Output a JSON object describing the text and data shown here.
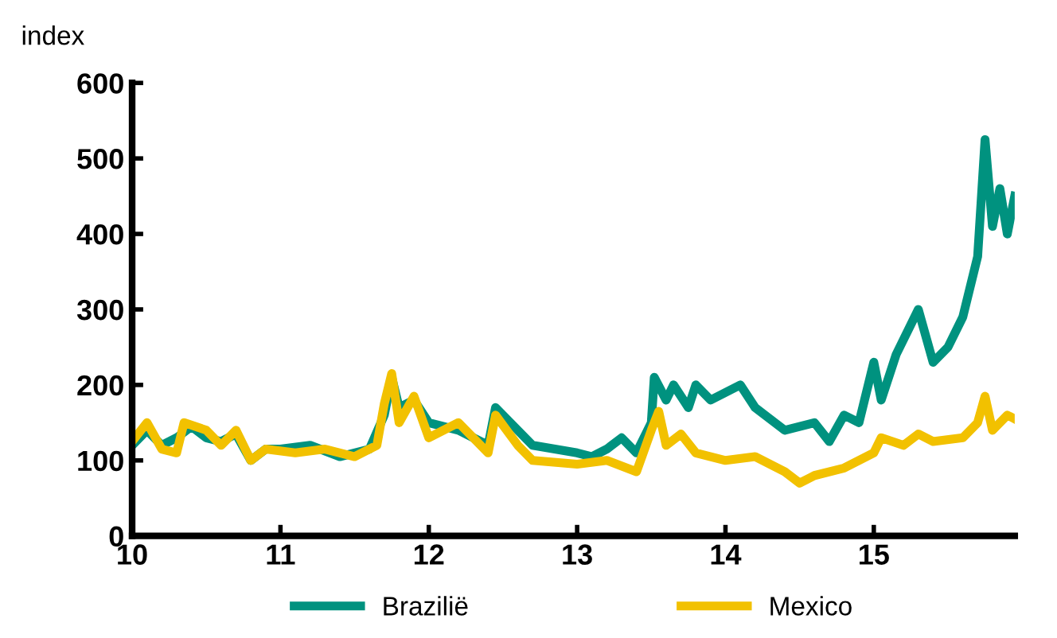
{
  "chart_data": {
    "type": "line",
    "ylabel": "index",
    "xlim": [
      10,
      15.95
    ],
    "xticks": [
      10,
      11,
      12,
      13,
      14,
      15
    ],
    "ylim": [
      0,
      600
    ],
    "yticks": [
      0,
      100,
      200,
      300,
      400,
      500,
      600
    ],
    "grid": false,
    "legend": "bottom",
    "line_style": "solid",
    "marker": "none",
    "series": [
      {
        "name": "Brazilië",
        "color": "#00927f",
        "x": [
          10.0,
          10.1,
          10.2,
          10.3,
          10.4,
          10.5,
          10.6,
          10.7,
          10.8,
          10.9,
          11.0,
          11.2,
          11.4,
          11.6,
          11.7,
          11.75,
          11.8,
          11.9,
          12.0,
          12.2,
          12.4,
          12.45,
          12.55,
          12.7,
          13.0,
          13.1,
          13.2,
          13.3,
          13.4,
          13.5,
          13.52,
          13.6,
          13.65,
          13.75,
          13.8,
          13.9,
          14.0,
          14.1,
          14.2,
          14.3,
          14.4,
          14.5,
          14.6,
          14.7,
          14.8,
          14.9,
          15.0,
          15.05,
          15.15,
          15.3,
          15.4,
          15.5,
          15.6,
          15.7,
          15.75,
          15.8,
          15.85,
          15.9,
          15.95
        ],
        "values": [
          120,
          140,
          120,
          130,
          145,
          130,
          125,
          135,
          100,
          115,
          115,
          120,
          105,
          115,
          160,
          210,
          170,
          180,
          150,
          140,
          120,
          170,
          150,
          120,
          110,
          105,
          115,
          130,
          110,
          150,
          210,
          180,
          200,
          170,
          200,
          180,
          190,
          200,
          170,
          155,
          140,
          145,
          150,
          125,
          160,
          150,
          230,
          180,
          240,
          300,
          230,
          250,
          290,
          370,
          525,
          410,
          460,
          400,
          450
        ]
      },
      {
        "name": "Mexico",
        "color": "#f2c100",
        "x": [
          10.0,
          10.1,
          10.2,
          10.3,
          10.35,
          10.5,
          10.6,
          10.7,
          10.8,
          10.9,
          11.1,
          11.3,
          11.5,
          11.65,
          11.7,
          11.75,
          11.8,
          11.9,
          12.0,
          12.2,
          12.4,
          12.45,
          12.6,
          12.7,
          13.0,
          13.2,
          13.4,
          13.5,
          13.55,
          13.6,
          13.7,
          13.8,
          14.0,
          14.2,
          14.4,
          14.5,
          14.6,
          14.8,
          15.0,
          15.05,
          15.2,
          15.3,
          15.4,
          15.6,
          15.7,
          15.75,
          15.8,
          15.9,
          15.95
        ],
        "values": [
          125,
          150,
          115,
          110,
          150,
          140,
          120,
          140,
          100,
          115,
          110,
          115,
          105,
          120,
          175,
          215,
          150,
          185,
          130,
          150,
          110,
          160,
          120,
          100,
          95,
          100,
          85,
          140,
          165,
          120,
          135,
          110,
          100,
          105,
          85,
          70,
          80,
          90,
          110,
          130,
          120,
          135,
          125,
          130,
          150,
          185,
          140,
          160,
          155
        ]
      }
    ]
  }
}
